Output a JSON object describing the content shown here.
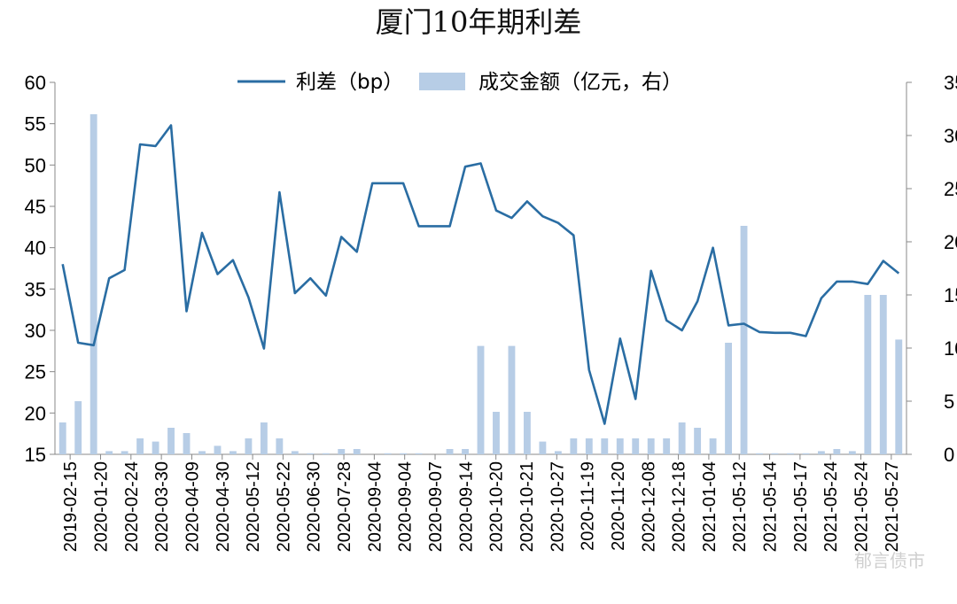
{
  "chart_data": {
    "type": "line+bar",
    "title": "厦门10年期利差",
    "legend": [
      {
        "label": "利差（bp）",
        "type": "line",
        "color": "#2a6da3"
      },
      {
        "label": "成交金额（亿元，右）",
        "type": "bar",
        "color": "#b7cde6"
      }
    ],
    "legend_position": "top-center",
    "y_left": {
      "min": 15,
      "max": 60,
      "ticks": [
        15,
        20,
        25,
        30,
        35,
        40,
        45,
        50,
        55,
        60
      ]
    },
    "y_right": {
      "min": 0,
      "max": 35,
      "ticks": [
        0,
        5,
        10,
        15,
        20,
        25,
        30,
        35
      ]
    },
    "x_tick_labels": [
      "2019-02-15",
      "2020-01-20",
      "2020-02-24",
      "2020-03-30",
      "2020-04-09",
      "2020-04-30",
      "2020-05-12",
      "2020-05-22",
      "2020-06-30",
      "2020-07-28",
      "2020-09-04",
      "2020-09-04",
      "2020-09-07",
      "2020-09-14",
      "2020-10-20",
      "2020-10-21",
      "2020-10-27",
      "2020-11-19",
      "2020-11-20",
      "2020-12-08",
      "2020-12-18",
      "2021-01-04",
      "2021-05-12",
      "2021-05-14",
      "2021-05-17",
      "2021-05-24",
      "2021-05-24",
      "2021-05-27"
    ],
    "spread": [
      38.0,
      28.5,
      28.2,
      36.3,
      37.3,
      52.5,
      52.3,
      54.8,
      32.3,
      41.8,
      36.8,
      38.5,
      34.0,
      27.8,
      46.7,
      34.5,
      36.3,
      34.2,
      41.3,
      39.5,
      47.8,
      47.8,
      47.8,
      42.6,
      42.6,
      42.6,
      49.8,
      50.2,
      44.5,
      43.6,
      45.6,
      43.8,
      43.0,
      41.5,
      25.2,
      18.7,
      29.0,
      21.7,
      37.2,
      31.2,
      30.0,
      33.5,
      40.0,
      30.6,
      30.8,
      29.8,
      29.7,
      29.7,
      29.3,
      33.9,
      35.9,
      35.9,
      35.6,
      38.4,
      36.9
    ],
    "volume": [
      3.0,
      5.0,
      32.0,
      0.3,
      0.3,
      1.5,
      1.2,
      2.5,
      2.0,
      0.3,
      0.8,
      0.3,
      1.5,
      3.0,
      1.5,
      0.3,
      0.1,
      0.1,
      0.5,
      0.5,
      0.0,
      0.1,
      0.1,
      0.1,
      0.0,
      0.5,
      0.5,
      10.2,
      4.0,
      10.2,
      4.0,
      1.2,
      0.3,
      1.5,
      1.5,
      1.5,
      1.5,
      1.5,
      1.5,
      1.5,
      3.0,
      2.5,
      1.5,
      10.5,
      21.5,
      0.1,
      0.1,
      0.1,
      0.1,
      0.3,
      0.5,
      0.3,
      15.0,
      15.0,
      10.8
    ],
    "grid": false
  },
  "watermark": "郁言债市"
}
